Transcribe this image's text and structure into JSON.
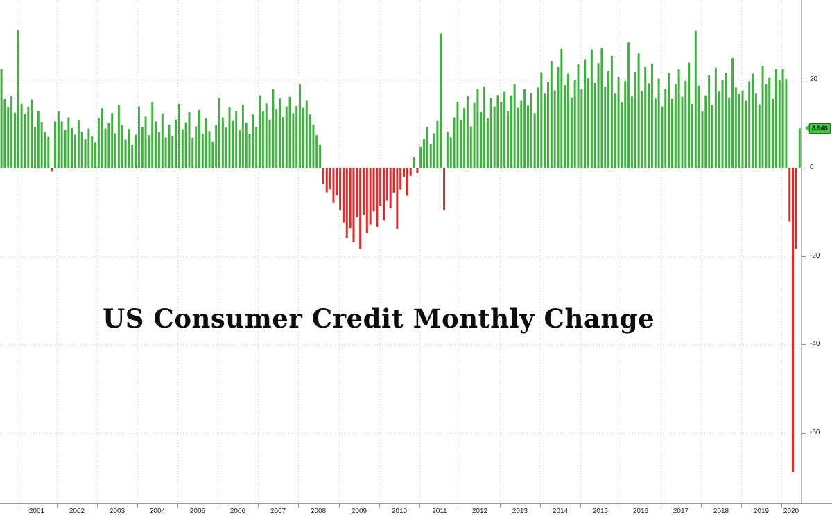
{
  "chart_data": {
    "type": "bar",
    "title": "US Consumer Credit Monthly Change",
    "xlabel": "",
    "ylabel": "",
    "ylim": [
      -76,
      38
    ],
    "y_ticks": [
      20,
      0,
      -20,
      -40,
      -60
    ],
    "grid": "dotted",
    "legend_position": "none",
    "x_tick_labels": [
      "2001",
      "2002",
      "2003",
      "2004",
      "2005",
      "2006",
      "2007",
      "2008",
      "2009",
      "2010",
      "2011",
      "2012",
      "2013",
      "2014",
      "2015",
      "2016",
      "2017",
      "2018",
      "2019",
      "2020"
    ],
    "start_year": 2000,
    "start_month": 8,
    "last_value": 8.948,
    "last_value_label": "8.948",
    "colors": {
      "positive": "#3cb43c",
      "negative": "#e02b2b",
      "grid": "#cccccc",
      "zero_line": "#999999",
      "badge_bg": "#3ec43e",
      "badge_border": "#1c7a1c",
      "badge_text": "#002a00",
      "axis_text": "#222222"
    },
    "series_by_year": [
      {
        "year": 2000,
        "values": [
          22.4,
          15.6,
          13.8,
          16.2,
          12.5
        ]
      },
      {
        "year": 2001,
        "values": [
          31.2,
          14.5,
          12.2,
          13.8,
          15.5,
          9.2,
          12.9,
          10.4,
          8.1,
          7.0,
          -0.8,
          10.5
        ]
      },
      {
        "year": 2002,
        "values": [
          12.8,
          10.5,
          8.6,
          11.4,
          9.0,
          7.5,
          10.8,
          8.2,
          6.5,
          8.9,
          7.1,
          5.8
        ]
      },
      {
        "year": 2003,
        "values": [
          11.2,
          13.5,
          8.9,
          10.1,
          12.4,
          7.8,
          14.2,
          9.6,
          6.4,
          8.8,
          5.2,
          7.5
        ]
      },
      {
        "year": 2004,
        "values": [
          13.9,
          9.2,
          11.6,
          7.4,
          14.8,
          10.5,
          8.1,
          12.3,
          6.9,
          9.8,
          7.2,
          10.9
        ]
      },
      {
        "year": 2005,
        "values": [
          14.5,
          8.7,
          10.3,
          12.6,
          6.8,
          9.4,
          13.1,
          7.6,
          11.2,
          8.3,
          5.9,
          9.7
        ]
      },
      {
        "year": 2006,
        "values": [
          15.8,
          11.4,
          9.1,
          13.7,
          10.6,
          12.9,
          8.5,
          14.3,
          10.2,
          7.7,
          12.1,
          9.3
        ]
      },
      {
        "year": 2007,
        "values": [
          16.4,
          12.8,
          14.6,
          10.9,
          17.8,
          13.2,
          15.7,
          11.5,
          13.9,
          16.1,
          12.4,
          14.0
        ]
      },
      {
        "year": 2008,
        "values": [
          18.9,
          13.6,
          15.2,
          12.1,
          9.8,
          7.4,
          5.2,
          -3.6,
          -5.5,
          -4.8,
          -7.9,
          -6.2
        ]
      },
      {
        "year": 2009,
        "values": [
          -9.5,
          -12.4,
          -15.8,
          -13.6,
          -16.9,
          -11.2,
          -18.4,
          -10.6,
          -14.7,
          -12.9,
          -9.8,
          -13.4
        ]
      },
      {
        "year": 2010,
        "values": [
          -8.6,
          -11.9,
          -7.4,
          -9.2,
          -5.6,
          -13.8,
          -4.9,
          -2.1,
          -6.3,
          -1.8,
          2.4,
          -1.2
        ]
      },
      {
        "year": 2011,
        "values": [
          4.8,
          6.5,
          9.2,
          5.4,
          7.8,
          10.6,
          30.4,
          -9.5,
          8.2,
          6.9,
          11.4,
          14.8
        ]
      },
      {
        "year": 2012,
        "values": [
          10.8,
          13.5,
          16.2,
          9.4,
          14.7,
          17.9,
          12.6,
          18.4,
          11.2,
          15.8,
          13.9,
          16.5
        ]
      },
      {
        "year": 2013,
        "values": [
          14.9,
          17.2,
          12.8,
          16.4,
          18.9,
          13.6,
          15.2,
          17.8,
          14.1,
          16.9,
          12.4,
          18.2
        ]
      },
      {
        "year": 2014,
        "values": [
          21.6,
          16.8,
          19.4,
          24.2,
          17.5,
          22.8,
          26.9,
          18.7,
          21.3,
          15.9,
          19.8,
          23.4
        ]
      },
      {
        "year": 2015,
        "values": [
          17.9,
          24.6,
          20.3,
          26.8,
          19.2,
          23.7,
          27.1,
          18.4,
          21.9,
          25.3,
          16.8,
          20.6
        ]
      },
      {
        "year": 2016,
        "values": [
          14.8,
          19.6,
          28.4,
          16.2,
          21.7,
          25.9,
          17.4,
          22.8,
          19.1,
          23.6,
          15.7,
          20.2
        ]
      },
      {
        "year": 2017,
        "values": [
          13.9,
          17.8,
          21.4,
          15.6,
          18.9,
          22.3,
          16.1,
          19.7,
          23.8,
          14.5,
          31.0,
          18.6
        ]
      },
      {
        "year": 2018,
        "values": [
          12.8,
          16.4,
          20.9,
          14.2,
          22.6,
          17.3,
          19.8,
          21.5,
          15.9,
          24.8,
          18.2,
          16.7
        ]
      },
      {
        "year": 2019,
        "values": [
          17.5,
          15.2,
          19.6,
          21.3,
          16.8,
          14.4,
          23.1,
          18.9,
          20.5,
          15.6,
          22.4,
          19.8
        ]
      },
      {
        "year": 2020,
        "values": [
          22.3,
          20.1,
          -12.1,
          -68.8,
          -18.3,
          8.948
        ]
      }
    ]
  }
}
